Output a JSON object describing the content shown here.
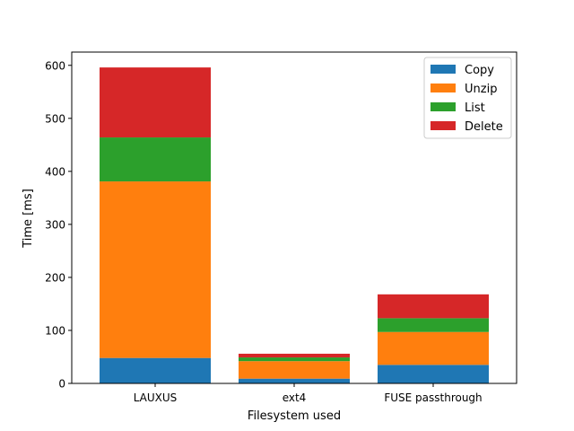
{
  "chart_data": {
    "type": "bar",
    "stacked": true,
    "title": "",
    "xlabel": "Filesystem used",
    "ylabel": "Time [ms]",
    "categories": [
      "LAUXUS",
      "ext4",
      "FUSE passthrough"
    ],
    "ylim": [
      0,
      625
    ],
    "yticks": [
      0,
      100,
      200,
      300,
      400,
      500,
      600
    ],
    "grid": false,
    "legend_position": "top-right",
    "series": [
      {
        "name": "Copy",
        "color": "#1f77b4",
        "values": [
          48,
          9,
          35
        ]
      },
      {
        "name": "Unzip",
        "color": "#ff7f0e",
        "values": [
          333,
          33,
          62
        ]
      },
      {
        "name": "List",
        "color": "#2ca02c",
        "values": [
          83,
          7,
          26
        ]
      },
      {
        "name": "Delete",
        "color": "#d62728",
        "values": [
          132,
          7,
          45
        ]
      }
    ]
  }
}
